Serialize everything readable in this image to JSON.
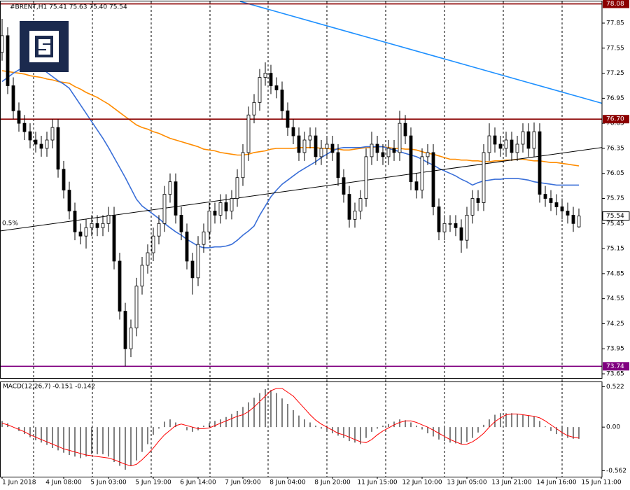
{
  "chart_data": {
    "type": "candlestick",
    "title": "#BRENT,H1  75.41 75.63 75.40 75.54",
    "categories": [
      "1 Jun 2018",
      null,
      null,
      null,
      null,
      null,
      null,
      null,
      null,
      null,
      null,
      "4 Jun 08:00",
      null,
      null,
      null,
      null,
      null,
      null,
      null,
      "5 Jun 03:00",
      null,
      null,
      null,
      null,
      null,
      null,
      null,
      "5 Jun 19:00",
      null,
      null,
      null,
      null,
      null,
      null,
      null,
      "6 Jun 14:00",
      null,
      null,
      null,
      null,
      null,
      null,
      null,
      "7 Jun 09:00",
      null,
      null,
      null,
      null,
      null,
      null,
      null,
      "8 Jun 04:00",
      null,
      null,
      null,
      null,
      null,
      null,
      null,
      "8 Jun 20:00",
      null,
      null,
      null,
      null,
      null,
      null,
      null,
      "11 Jun 15:00",
      null,
      null,
      null,
      null,
      null,
      null,
      null,
      "12 Jun 10:00",
      null,
      null,
      null,
      null,
      null,
      null,
      null,
      "13 Jun 05:00",
      null,
      null,
      null,
      null,
      null,
      null,
      null,
      "13 Jun 21:00",
      null,
      null,
      null,
      null,
      null,
      null,
      null,
      "14 Jun 16:00",
      null,
      null,
      null,
      null,
      null,
      null,
      null,
      "15 Jun 11:00"
    ],
    "open": [
      77.5,
      77.7,
      77.1,
      76.8,
      76.65,
      76.55,
      76.45,
      76.4,
      76.35,
      76.45,
      76.6,
      76.1,
      75.85,
      75.6,
      75.35,
      75.3,
      75.4,
      75.45,
      75.4,
      75.45,
      75.55,
      75.0,
      74.4,
      73.95,
      74.2,
      74.7,
      74.95,
      75.1,
      75.3,
      75.45,
      75.8,
      75.95,
      75.55,
      75.35,
      75.0,
      74.8,
      75.2,
      75.35,
      75.6,
      75.55,
      75.7,
      75.6,
      75.75,
      76.0,
      76.3,
      76.75,
      76.9,
      77.2,
      77.25,
      77.1,
      77.05,
      76.8,
      76.6,
      76.5,
      76.3,
      76.45,
      76.5,
      76.25,
      76.35,
      76.4,
      76.3,
      76.0,
      75.8,
      75.5,
      75.6,
      75.75,
      76.25,
      76.4,
      76.3,
      76.25,
      76.35,
      76.3,
      76.65,
      76.5,
      75.95,
      75.85,
      76.25,
      76.3,
      75.65,
      75.35,
      75.45,
      75.45,
      75.4,
      75.25,
      75.55,
      75.75,
      75.7,
      76.3,
      76.5,
      76.4,
      76.35,
      76.45,
      76.3,
      76.4,
      76.55,
      76.35,
      76.55,
      75.8,
      75.75,
      75.7,
      75.65,
      75.6,
      75.55,
      75.41,
      null,
      null,
      null,
      null
    ],
    "high": [
      77.9,
      77.8,
      77.2,
      76.9,
      76.75,
      76.65,
      76.55,
      76.5,
      76.55,
      76.7,
      76.7,
      76.2,
      75.95,
      75.7,
      75.45,
      75.5,
      75.55,
      75.55,
      75.55,
      75.65,
      75.65,
      75.1,
      74.5,
      74.3,
      74.8,
      75.05,
      75.2,
      75.4,
      75.55,
      75.9,
      76.05,
      76.05,
      75.65,
      75.45,
      75.1,
      75.3,
      75.45,
      75.7,
      75.7,
      75.8,
      75.8,
      75.85,
      76.1,
      76.4,
      76.85,
      77.0,
      77.3,
      77.38,
      77.35,
      77.2,
      77.15,
      76.9,
      76.7,
      76.6,
      76.55,
      76.6,
      76.6,
      76.45,
      76.5,
      76.5,
      76.4,
      76.1,
      75.9,
      75.7,
      75.85,
      76.35,
      76.55,
      76.5,
      76.4,
      76.45,
      76.45,
      76.8,
      76.75,
      76.6,
      76.05,
      76.35,
      76.4,
      76.4,
      75.75,
      75.55,
      75.55,
      75.55,
      75.5,
      75.65,
      75.85,
      75.85,
      76.4,
      76.65,
      76.6,
      76.5,
      76.55,
      76.55,
      76.5,
      76.65,
      76.65,
      76.66,
      76.65,
      75.9,
      75.85,
      75.8,
      75.75,
      75.7,
      75.65,
      75.63,
      null,
      null,
      null,
      null
    ],
    "low": [
      77.4,
      77.0,
      76.7,
      76.55,
      76.45,
      76.35,
      76.3,
      76.25,
      76.25,
      76.35,
      76.0,
      75.75,
      75.5,
      75.25,
      75.2,
      75.15,
      75.3,
      75.3,
      75.3,
      75.35,
      74.9,
      74.3,
      73.74,
      73.85,
      74.1,
      74.6,
      74.85,
      75.0,
      75.2,
      75.35,
      75.7,
      75.45,
      75.25,
      74.9,
      74.6,
      74.7,
      75.1,
      75.25,
      75.45,
      75.45,
      75.5,
      75.5,
      75.65,
      75.9,
      76.2,
      76.65,
      76.8,
      77.1,
      77.0,
      76.95,
      76.7,
      76.5,
      76.4,
      76.2,
      76.2,
      76.35,
      76.15,
      76.15,
      76.25,
      76.2,
      75.9,
      75.7,
      75.4,
      75.4,
      75.5,
      75.65,
      76.15,
      76.2,
      76.15,
      76.15,
      76.2,
      76.2,
      76.4,
      75.85,
      75.75,
      75.75,
      76.15,
      75.55,
      75.25,
      75.25,
      75.35,
      75.3,
      75.1,
      75.15,
      75.45,
      75.6,
      75.6,
      76.2,
      76.3,
      76.25,
      76.25,
      76.2,
      76.2,
      76.3,
      76.25,
      76.25,
      75.7,
      75.65,
      75.6,
      75.55,
      75.5,
      75.45,
      75.35,
      75.4,
      null,
      null,
      null,
      null
    ],
    "close": [
      77.7,
      77.1,
      76.8,
      76.65,
      76.55,
      76.45,
      76.4,
      76.35,
      76.45,
      76.6,
      76.1,
      75.85,
      75.6,
      75.35,
      75.3,
      75.4,
      75.45,
      75.4,
      75.45,
      75.55,
      75.0,
      74.4,
      73.95,
      74.2,
      74.7,
      74.95,
      75.1,
      75.3,
      75.45,
      75.8,
      75.95,
      75.55,
      75.35,
      75.0,
      74.8,
      75.2,
      75.35,
      75.6,
      75.55,
      75.7,
      75.6,
      75.75,
      76.0,
      76.3,
      76.75,
      76.9,
      77.2,
      77.25,
      77.1,
      77.05,
      76.8,
      76.6,
      76.5,
      76.3,
      76.45,
      76.5,
      76.25,
      76.35,
      76.4,
      76.3,
      76.0,
      75.8,
      75.5,
      75.6,
      75.75,
      76.25,
      76.4,
      76.3,
      76.25,
      76.35,
      76.3,
      76.65,
      76.5,
      75.95,
      75.85,
      76.25,
      76.3,
      75.65,
      75.35,
      75.45,
      75.45,
      75.4,
      75.25,
      75.55,
      75.75,
      75.7,
      76.3,
      76.5,
      76.4,
      76.35,
      76.45,
      76.3,
      76.4,
      76.55,
      76.35,
      76.55,
      75.8,
      75.75,
      75.7,
      75.65,
      75.6,
      75.55,
      75.45,
      75.54,
      null,
      null,
      null,
      null
    ],
    "moving_averages": [
      {
        "color": "#ff8c00",
        "values": [
          77.28,
          77.27,
          77.26,
          77.25,
          77.24,
          77.22,
          77.21,
          77.2,
          77.18,
          77.17,
          77.15,
          77.14,
          77.13,
          77.09,
          77.06,
          77.02,
          76.99,
          76.96,
          76.92,
          76.88,
          76.83,
          76.78,
          76.73,
          76.68,
          76.63,
          76.6,
          76.58,
          76.55,
          76.53,
          76.5,
          76.47,
          76.45,
          76.43,
          76.41,
          76.39,
          76.37,
          76.34,
          76.33,
          76.32,
          76.3,
          76.29,
          76.28,
          76.27,
          76.27,
          76.28,
          76.3,
          76.31,
          76.32,
          76.34,
          76.35,
          76.35,
          76.35,
          76.35,
          76.36,
          76.36,
          76.36,
          76.36,
          76.35,
          76.35,
          76.34,
          76.34,
          76.33,
          76.33,
          76.34,
          76.35,
          76.36,
          76.36,
          76.37,
          76.37,
          76.36,
          76.35,
          76.35,
          76.34,
          76.34,
          76.33,
          76.31,
          76.29,
          76.28,
          76.26,
          76.24,
          76.22,
          76.22,
          76.21,
          76.21,
          76.2,
          76.2,
          76.19,
          76.19,
          76.2,
          76.2,
          76.21,
          76.21,
          76.22,
          76.22,
          76.21,
          76.2,
          76.2,
          76.19,
          76.18,
          76.18,
          76.17,
          76.16,
          76.15,
          76.14,
          null,
          null,
          null,
          null
        ]
      },
      {
        "color": "#3a6fd8",
        "values": [
          77.15,
          77.2,
          77.25,
          77.29,
          77.32,
          77.34,
          77.34,
          77.31,
          77.26,
          77.21,
          77.16,
          77.12,
          77.07,
          76.97,
          76.87,
          76.77,
          76.67,
          76.57,
          76.47,
          76.36,
          76.24,
          76.12,
          76.0,
          75.87,
          75.74,
          75.66,
          75.61,
          75.56,
          75.51,
          75.45,
          75.4,
          75.35,
          75.31,
          75.26,
          75.22,
          75.18,
          75.16,
          75.16,
          75.17,
          75.17,
          75.18,
          75.2,
          75.25,
          75.31,
          75.36,
          75.42,
          75.55,
          75.66,
          75.77,
          75.85,
          75.92,
          75.97,
          76.02,
          76.07,
          76.11,
          76.15,
          76.19,
          76.24,
          76.28,
          76.32,
          76.35,
          76.36,
          76.36,
          76.36,
          76.36,
          76.37,
          76.37,
          76.37,
          76.37,
          76.35,
          76.33,
          76.31,
          76.29,
          76.27,
          76.25,
          76.22,
          76.18,
          76.15,
          76.11,
          76.08,
          76.05,
          76.02,
          75.98,
          75.95,
          75.91,
          75.94,
          75.96,
          75.97,
          75.98,
          75.98,
          75.99,
          75.99,
          75.99,
          75.98,
          75.97,
          75.95,
          75.94,
          75.93,
          75.92,
          75.91,
          75.91,
          75.91,
          75.91,
          75.91,
          null,
          null,
          null,
          null
        ]
      }
    ],
    "up_color": "#ffffff",
    "down_color": "#000000",
    "ylim": [
      73.6,
      78.11
    ],
    "yticks": [
      73.65,
      73.95,
      74.25,
      74.55,
      74.85,
      75.15,
      75.45,
      75.75,
      76.05,
      76.35,
      76.65,
      76.95,
      77.25,
      77.55,
      77.85
    ],
    "levels": [
      {
        "value": 78.08,
        "color": "#8b0000"
      },
      {
        "value": 76.7,
        "label": "76.70",
        "color": "#8b0000"
      },
      {
        "value": 73.74,
        "color": "#800080"
      }
    ],
    "trendlines": [
      {
        "color": "#1e90ff",
        "points": [
          [
            42.5,
            78.11
          ],
          [
            107.1,
            76.89
          ]
        ]
      },
      {
        "color": "#000000",
        "label": "0.5%",
        "points": [
          [
            -0.4,
            75.36
          ],
          [
            107.1,
            76.36
          ]
        ]
      }
    ],
    "indicator": {
      "title": "MACD(12,26,7) -0.151 -0.142",
      "histogram_color": "#000000",
      "signal_color": "#ff0000",
      "ylim": [
        -0.64,
        0.58
      ],
      "yticks": [
        -0.562,
        {
          "value": 0,
          "label": "0.00"
        },
        0.522
      ],
      "histogram": [
        0.08,
        0.05,
        0.0,
        -0.05,
        -0.09,
        -0.13,
        -0.17,
        -0.2,
        -0.23,
        -0.27,
        -0.3,
        -0.33,
        -0.36,
        -0.38,
        -0.4,
        -0.38,
        -0.35,
        -0.35,
        -0.35,
        -0.38,
        -0.45,
        -0.5,
        -0.55,
        -0.5,
        -0.43,
        -0.32,
        -0.22,
        -0.1,
        -0.02,
        0.07,
        0.1,
        0.06,
        0.0,
        -0.04,
        -0.06,
        -0.04,
        0.02,
        0.05,
        0.08,
        0.1,
        0.13,
        0.17,
        0.21,
        0.26,
        0.32,
        0.38,
        0.44,
        0.49,
        0.48,
        0.44,
        0.37,
        0.3,
        0.22,
        0.15,
        0.1,
        0.06,
        0.02,
        -0.02,
        -0.05,
        -0.08,
        -0.11,
        -0.14,
        -0.18,
        -0.2,
        -0.22,
        -0.14,
        -0.06,
        -0.02,
        0.02,
        0.04,
        0.07,
        0.1,
        0.09,
        0.06,
        0.02,
        -0.03,
        -0.08,
        -0.12,
        -0.16,
        -0.18,
        -0.2,
        -0.21,
        -0.22,
        -0.19,
        -0.14,
        -0.07,
        0.03,
        0.1,
        0.16,
        0.18,
        0.18,
        0.18,
        0.17,
        0.16,
        0.15,
        0.14,
        0.08,
        0.01,
        -0.05,
        -0.09,
        -0.12,
        -0.14,
        -0.15,
        -0.151,
        null,
        null,
        null,
        null
      ],
      "signal": [
        0.05,
        0.03,
        0.0,
        -0.03,
        -0.06,
        -0.1,
        -0.13,
        -0.16,
        -0.19,
        -0.22,
        -0.25,
        -0.28,
        -0.3,
        -0.32,
        -0.34,
        -0.36,
        -0.37,
        -0.38,
        -0.39,
        -0.4,
        -0.42,
        -0.45,
        -0.48,
        -0.5,
        -0.48,
        -0.42,
        -0.35,
        -0.27,
        -0.18,
        -0.1,
        -0.04,
        0.02,
        0.04,
        0.02,
        0.0,
        -0.02,
        -0.02,
        -0.01,
        0.02,
        0.05,
        0.08,
        0.11,
        0.14,
        0.16,
        0.2,
        0.26,
        0.33,
        0.4,
        0.47,
        0.5,
        0.5,
        0.45,
        0.4,
        0.32,
        0.24,
        0.16,
        0.09,
        0.04,
        0.0,
        -0.04,
        -0.08,
        -0.1,
        -0.13,
        -0.16,
        -0.19,
        -0.2,
        -0.16,
        -0.1,
        -0.05,
        -0.01,
        0.03,
        0.06,
        0.08,
        0.08,
        0.06,
        0.03,
        0.0,
        -0.04,
        -0.08,
        -0.12,
        -0.16,
        -0.19,
        -0.22,
        -0.22,
        -0.19,
        -0.14,
        -0.08,
        0.0,
        0.07,
        0.12,
        0.16,
        0.17,
        0.17,
        0.16,
        0.15,
        0.14,
        0.12,
        0.08,
        0.03,
        -0.02,
        -0.07,
        -0.11,
        -0.13,
        -0.142,
        null,
        null,
        null,
        null
      ]
    }
  }
}
